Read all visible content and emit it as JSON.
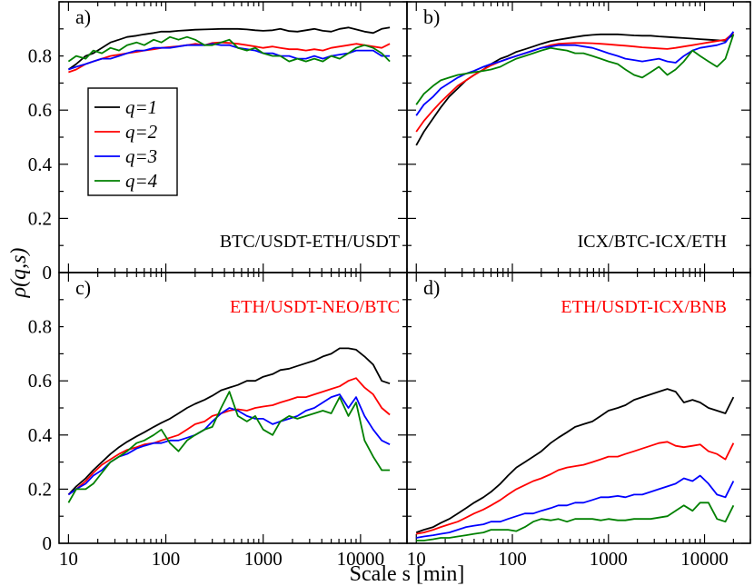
{
  "chart_data": [
    {
      "type": "line",
      "panel": "a)",
      "title": "BTC/USDT-ETH/USDT",
      "title_color": "#000000",
      "xscale": "log",
      "xlim": [
        8,
        30000
      ],
      "ylim": [
        0,
        1.0
      ],
      "x": [
        10,
        12,
        15,
        18,
        22,
        27,
        33,
        40,
        50,
        60,
        75,
        90,
        110,
        135,
        165,
        200,
        250,
        300,
        370,
        450,
        550,
        680,
        830,
        1000,
        1250,
        1500,
        1850,
        2250,
        2750,
        3350,
        4100,
        5000,
        6100,
        7500,
        9000,
        11000,
        13500,
        16500,
        20000
      ],
      "series": [
        {
          "name": "q=1",
          "color": "#000000",
          "values": [
            0.75,
            0.77,
            0.8,
            0.81,
            0.83,
            0.85,
            0.86,
            0.87,
            0.875,
            0.88,
            0.885,
            0.89,
            0.89,
            0.893,
            0.895,
            0.897,
            0.898,
            0.899,
            0.9,
            0.9,
            0.9,
            0.898,
            0.895,
            0.893,
            0.895,
            0.9,
            0.892,
            0.89,
            0.895,
            0.9,
            0.893,
            0.89,
            0.9,
            0.905,
            0.898,
            0.89,
            0.885,
            0.9,
            0.905
          ]
        },
        {
          "name": "q=2",
          "color": "#ff0000",
          "values": [
            0.74,
            0.75,
            0.77,
            0.78,
            0.79,
            0.8,
            0.805,
            0.81,
            0.815,
            0.82,
            0.825,
            0.83,
            0.833,
            0.836,
            0.84,
            0.845,
            0.84,
            0.848,
            0.85,
            0.848,
            0.845,
            0.84,
            0.835,
            0.83,
            0.835,
            0.83,
            0.825,
            0.825,
            0.82,
            0.825,
            0.82,
            0.83,
            0.835,
            0.84,
            0.845,
            0.84,
            0.835,
            0.83,
            0.845
          ]
        },
        {
          "name": "q=3",
          "color": "#0000ff",
          "values": [
            0.75,
            0.76,
            0.77,
            0.78,
            0.79,
            0.79,
            0.8,
            0.81,
            0.82,
            0.82,
            0.83,
            0.83,
            0.83,
            0.835,
            0.84,
            0.84,
            0.84,
            0.845,
            0.84,
            0.84,
            0.83,
            0.825,
            0.82,
            0.81,
            0.81,
            0.8,
            0.8,
            0.79,
            0.79,
            0.8,
            0.79,
            0.8,
            0.805,
            0.81,
            0.82,
            0.82,
            0.82,
            0.8,
            0.8
          ]
        },
        {
          "name": "q=4",
          "color": "#008000",
          "values": [
            0.78,
            0.8,
            0.79,
            0.82,
            0.81,
            0.83,
            0.82,
            0.84,
            0.85,
            0.84,
            0.86,
            0.85,
            0.87,
            0.86,
            0.87,
            0.86,
            0.84,
            0.84,
            0.85,
            0.86,
            0.83,
            0.82,
            0.83,
            0.81,
            0.8,
            0.8,
            0.78,
            0.79,
            0.78,
            0.79,
            0.78,
            0.8,
            0.79,
            0.81,
            0.83,
            0.84,
            0.83,
            0.81,
            0.78
          ]
        }
      ]
    },
    {
      "type": "line",
      "panel": "b)",
      "title": "ICX/BTC-ICX/ETH",
      "title_color": "#000000",
      "xscale": "log",
      "xlim": [
        8,
        30000
      ],
      "ylim": [
        0,
        1.0
      ],
      "x": [
        10,
        12,
        15,
        18,
        22,
        27,
        33,
        40,
        50,
        60,
        75,
        90,
        110,
        135,
        165,
        200,
        250,
        300,
        370,
        450,
        550,
        680,
        830,
        1000,
        1250,
        1500,
        1850,
        2250,
        2750,
        3350,
        4100,
        5000,
        6100,
        7500,
        9000,
        11000,
        13500,
        16500,
        20000
      ],
      "series": [
        {
          "name": "q=1",
          "color": "#000000",
          "values": [
            0.47,
            0.52,
            0.57,
            0.61,
            0.65,
            0.68,
            0.71,
            0.73,
            0.75,
            0.77,
            0.79,
            0.8,
            0.815,
            0.825,
            0.835,
            0.845,
            0.855,
            0.86,
            0.865,
            0.87,
            0.875,
            0.878,
            0.88,
            0.88,
            0.88,
            0.878,
            0.876,
            0.875,
            0.875,
            0.872,
            0.87,
            0.868,
            0.866,
            0.864,
            0.862,
            0.86,
            0.858,
            0.856,
            0.88
          ]
        },
        {
          "name": "q=2",
          "color": "#ff0000",
          "values": [
            0.52,
            0.56,
            0.6,
            0.63,
            0.66,
            0.69,
            0.71,
            0.73,
            0.75,
            0.765,
            0.78,
            0.79,
            0.8,
            0.81,
            0.82,
            0.83,
            0.84,
            0.845,
            0.847,
            0.848,
            0.848,
            0.847,
            0.845,
            0.843,
            0.84,
            0.838,
            0.835,
            0.832,
            0.83,
            0.828,
            0.826,
            0.83,
            0.835,
            0.84,
            0.845,
            0.85,
            0.855,
            0.86,
            0.885
          ]
        },
        {
          "name": "q=3",
          "color": "#0000ff",
          "values": [
            0.58,
            0.62,
            0.65,
            0.68,
            0.7,
            0.72,
            0.735,
            0.745,
            0.76,
            0.77,
            0.78,
            0.79,
            0.8,
            0.81,
            0.82,
            0.83,
            0.835,
            0.84,
            0.84,
            0.84,
            0.835,
            0.83,
            0.82,
            0.81,
            0.8,
            0.79,
            0.785,
            0.78,
            0.785,
            0.79,
            0.78,
            0.775,
            0.8,
            0.82,
            0.83,
            0.835,
            0.84,
            0.85,
            0.89
          ]
        },
        {
          "name": "q=4",
          "color": "#008000",
          "values": [
            0.62,
            0.66,
            0.69,
            0.71,
            0.72,
            0.73,
            0.735,
            0.74,
            0.745,
            0.75,
            0.76,
            0.775,
            0.79,
            0.8,
            0.81,
            0.82,
            0.83,
            0.825,
            0.82,
            0.81,
            0.81,
            0.8,
            0.79,
            0.78,
            0.77,
            0.75,
            0.73,
            0.72,
            0.74,
            0.76,
            0.73,
            0.75,
            0.78,
            0.82,
            0.8,
            0.78,
            0.76,
            0.79,
            0.88
          ]
        }
      ]
    },
    {
      "type": "line",
      "panel": "c)",
      "title": "ETH/USDT-NEO/BTC",
      "title_color": "#ff0000",
      "xscale": "log",
      "xlim": [
        8,
        30000
      ],
      "ylim": [
        0,
        1.0
      ],
      "x": [
        10,
        12,
        15,
        18,
        22,
        27,
        33,
        40,
        50,
        60,
        75,
        90,
        110,
        135,
        165,
        200,
        250,
        300,
        370,
        450,
        550,
        680,
        830,
        1000,
        1250,
        1500,
        1850,
        2250,
        2750,
        3350,
        4100,
        5000,
        6100,
        7500,
        9000,
        11000,
        13500,
        16500,
        20000
      ],
      "series": [
        {
          "name": "q=1",
          "color": "#000000",
          "values": [
            0.18,
            0.21,
            0.24,
            0.27,
            0.3,
            0.33,
            0.355,
            0.375,
            0.395,
            0.41,
            0.43,
            0.445,
            0.46,
            0.48,
            0.5,
            0.515,
            0.53,
            0.545,
            0.565,
            0.575,
            0.585,
            0.6,
            0.6,
            0.615,
            0.625,
            0.64,
            0.645,
            0.655,
            0.665,
            0.675,
            0.69,
            0.7,
            0.72,
            0.72,
            0.715,
            0.69,
            0.66,
            0.6,
            0.59
          ]
        },
        {
          "name": "q=2",
          "color": "#ff0000",
          "values": [
            0.18,
            0.2,
            0.23,
            0.26,
            0.29,
            0.31,
            0.33,
            0.345,
            0.355,
            0.365,
            0.37,
            0.38,
            0.39,
            0.4,
            0.42,
            0.44,
            0.45,
            0.47,
            0.48,
            0.49,
            0.495,
            0.49,
            0.5,
            0.505,
            0.51,
            0.52,
            0.53,
            0.54,
            0.54,
            0.55,
            0.56,
            0.57,
            0.58,
            0.6,
            0.61,
            0.575,
            0.55,
            0.5,
            0.475
          ]
        },
        {
          "name": "q=3",
          "color": "#0000ff",
          "values": [
            0.18,
            0.2,
            0.22,
            0.25,
            0.27,
            0.3,
            0.32,
            0.33,
            0.35,
            0.36,
            0.37,
            0.37,
            0.38,
            0.38,
            0.39,
            0.4,
            0.42,
            0.45,
            0.48,
            0.5,
            0.49,
            0.47,
            0.46,
            0.46,
            0.44,
            0.45,
            0.46,
            0.47,
            0.49,
            0.5,
            0.52,
            0.54,
            0.55,
            0.5,
            0.54,
            0.47,
            0.42,
            0.38,
            0.365
          ]
        },
        {
          "name": "q=4",
          "color": "#008000",
          "values": [
            0.15,
            0.2,
            0.2,
            0.22,
            0.26,
            0.3,
            0.32,
            0.34,
            0.37,
            0.38,
            0.4,
            0.42,
            0.37,
            0.34,
            0.38,
            0.4,
            0.42,
            0.43,
            0.5,
            0.56,
            0.47,
            0.45,
            0.47,
            0.42,
            0.4,
            0.45,
            0.47,
            0.46,
            0.47,
            0.48,
            0.49,
            0.48,
            0.54,
            0.47,
            0.52,
            0.38,
            0.32,
            0.27,
            0.27
          ]
        }
      ]
    },
    {
      "type": "line",
      "panel": "d)",
      "title": "ETH/USDT-ICX/BNB",
      "title_color": "#ff0000",
      "xscale": "log",
      "xlim": [
        8,
        30000
      ],
      "ylim": [
        0,
        1.0
      ],
      "x": [
        10,
        12,
        15,
        18,
        22,
        27,
        33,
        40,
        50,
        60,
        75,
        90,
        110,
        135,
        165,
        200,
        250,
        300,
        370,
        450,
        550,
        680,
        830,
        1000,
        1250,
        1500,
        1850,
        2250,
        2750,
        3350,
        4100,
        5000,
        6100,
        7500,
        9000,
        11000,
        13500,
        16500,
        20000
      ],
      "series": [
        {
          "name": "q=1",
          "color": "#000000",
          "values": [
            0.04,
            0.05,
            0.06,
            0.075,
            0.09,
            0.11,
            0.13,
            0.15,
            0.17,
            0.19,
            0.22,
            0.25,
            0.28,
            0.3,
            0.32,
            0.34,
            0.37,
            0.39,
            0.41,
            0.43,
            0.44,
            0.45,
            0.47,
            0.49,
            0.5,
            0.51,
            0.53,
            0.54,
            0.55,
            0.56,
            0.57,
            0.56,
            0.52,
            0.53,
            0.52,
            0.5,
            0.49,
            0.48,
            0.54
          ]
        },
        {
          "name": "q=2",
          "color": "#ff0000",
          "values": [
            0.035,
            0.04,
            0.05,
            0.06,
            0.07,
            0.08,
            0.095,
            0.11,
            0.125,
            0.14,
            0.16,
            0.18,
            0.2,
            0.215,
            0.23,
            0.24,
            0.255,
            0.27,
            0.28,
            0.285,
            0.29,
            0.3,
            0.31,
            0.32,
            0.32,
            0.33,
            0.34,
            0.35,
            0.36,
            0.37,
            0.375,
            0.36,
            0.355,
            0.36,
            0.365,
            0.34,
            0.33,
            0.31,
            0.37
          ]
        },
        {
          "name": "q=3",
          "color": "#0000ff",
          "values": [
            0.02,
            0.025,
            0.03,
            0.035,
            0.04,
            0.05,
            0.06,
            0.065,
            0.07,
            0.08,
            0.08,
            0.09,
            0.1,
            0.11,
            0.11,
            0.12,
            0.13,
            0.14,
            0.14,
            0.15,
            0.15,
            0.16,
            0.17,
            0.17,
            0.175,
            0.17,
            0.18,
            0.18,
            0.19,
            0.2,
            0.21,
            0.22,
            0.24,
            0.23,
            0.25,
            0.22,
            0.18,
            0.17,
            0.23
          ]
        },
        {
          "name": "q=4",
          "color": "#008000",
          "values": [
            0.01,
            0.01,
            0.015,
            0.02,
            0.02,
            0.025,
            0.03,
            0.035,
            0.04,
            0.05,
            0.05,
            0.05,
            0.045,
            0.06,
            0.08,
            0.09,
            0.085,
            0.09,
            0.08,
            0.09,
            0.09,
            0.09,
            0.085,
            0.09,
            0.085,
            0.085,
            0.09,
            0.09,
            0.09,
            0.095,
            0.1,
            0.12,
            0.14,
            0.12,
            0.15,
            0.15,
            0.09,
            0.08,
            0.14
          ]
        }
      ]
    }
  ],
  "axes": {
    "ylabel": "ρ(q,s)",
    "xlabel": "Scale s [min]",
    "y_ticks": [
      "0",
      "0.2",
      "0.4",
      "0.6",
      "0.8"
    ],
    "x_ticks": [
      "10",
      "100",
      "1000",
      "10000"
    ]
  },
  "legend": {
    "entries": [
      "q=1",
      "q=2",
      "q=3",
      "q=4"
    ],
    "colors": [
      "#000000",
      "#ff0000",
      "#0000ff",
      "#008000"
    ]
  }
}
